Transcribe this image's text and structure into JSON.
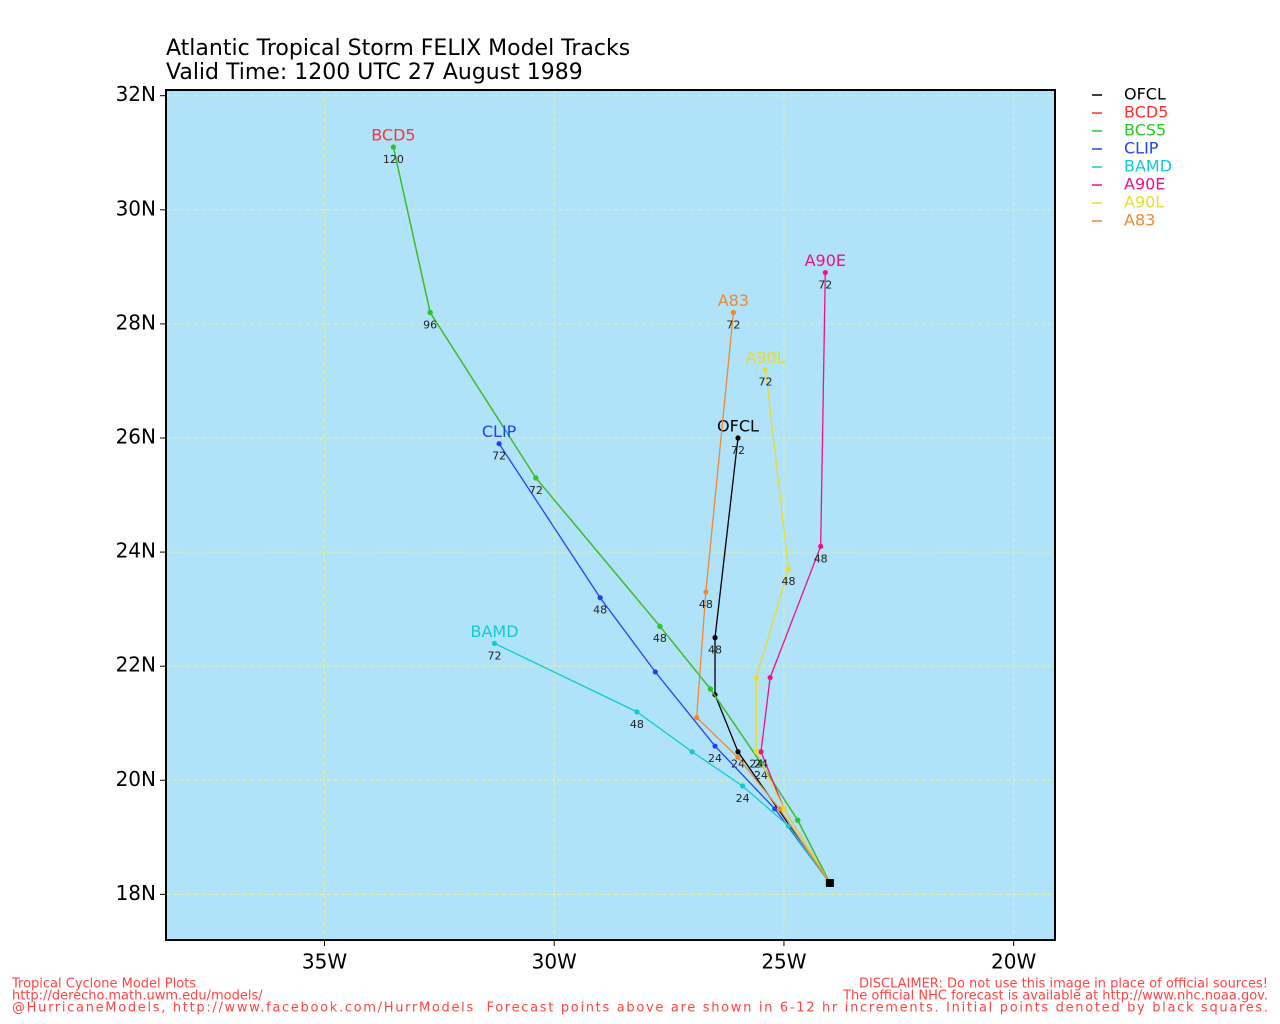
{
  "chart_data": {
    "type": "track-map",
    "title": "Atlantic Tropical Storm FELIX Model Tracks",
    "subtitle": "Valid Time: 1200 UTC 27 August 1989",
    "xlim": [
      -38.45,
      -19.1
    ],
    "ylim": [
      17.2,
      32.1
    ],
    "xticks": [
      {
        "value": -35,
        "label": "35W"
      },
      {
        "value": -30,
        "label": "30W"
      },
      {
        "value": -25,
        "label": "25W"
      },
      {
        "value": -20,
        "label": "20W"
      }
    ],
    "yticks": [
      {
        "value": 18,
        "label": "18N"
      },
      {
        "value": 20,
        "label": "20N"
      },
      {
        "value": 22,
        "label": "22N"
      },
      {
        "value": 24,
        "label": "24N"
      },
      {
        "value": 26,
        "label": "26N"
      },
      {
        "value": 28,
        "label": "28N"
      },
      {
        "value": 30,
        "label": "30N"
      },
      {
        "value": 32,
        "label": "32N"
      }
    ],
    "grid": true,
    "background": "#b0e2fa",
    "grid_color": "#e6f0a0",
    "series": [
      {
        "name": "OFCL",
        "color": "#000000",
        "x": [
          -24.0,
          -26.0,
          -26.5,
          -26.5,
          -26.0
        ],
        "y": [
          18.2,
          20.5,
          21.5,
          22.5,
          26.0
        ],
        "hours": [
          null,
          24,
          null,
          48,
          72
        ],
        "end_label": true
      },
      {
        "name": "BCD5",
        "color": "#ff3333",
        "x": [
          -24.0,
          -24.7,
          -25.5,
          -26.6,
          -27.7,
          -30.4,
          -32.7,
          -33.5
        ],
        "y": [
          18.2,
          19.3,
          20.3,
          21.6,
          22.7,
          25.3,
          28.2,
          31.1
        ],
        "hours": [
          null,
          null,
          null,
          null,
          null,
          null,
          null,
          null
        ],
        "end_label": true
      },
      {
        "name": "BCS5",
        "color": "#22cc22",
        "x": [
          -24.0,
          -24.7,
          -25.5,
          -26.6,
          -27.7,
          -30.4,
          -32.7,
          -33.5
        ],
        "y": [
          18.2,
          19.3,
          20.3,
          21.6,
          22.7,
          25.3,
          28.2,
          31.1
        ],
        "hours": [
          null,
          null,
          24,
          null,
          48,
          72,
          96,
          120
        ],
        "end_label": false
      },
      {
        "name": "CLIP",
        "color": "#2244ee",
        "x": [
          -24.0,
          -25.2,
          -26.5,
          -27.8,
          -29.0,
          -31.2
        ],
        "y": [
          18.2,
          19.5,
          20.6,
          21.9,
          23.2,
          25.9
        ],
        "hours": [
          null,
          null,
          24,
          null,
          48,
          72
        ],
        "end_label": true
      },
      {
        "name": "BAMD",
        "color": "#11cccc",
        "x": [
          -24.0,
          -24.9,
          -25.9,
          -27.0,
          -28.2,
          -31.3
        ],
        "y": [
          18.2,
          19.2,
          19.9,
          20.5,
          21.2,
          22.4
        ],
        "hours": [
          null,
          null,
          24,
          null,
          48,
          72
        ],
        "end_label": true
      },
      {
        "name": "A90E",
        "color": "#ee1188",
        "x": [
          -24.0,
          -25.0,
          -25.5,
          -25.3,
          -24.2,
          -24.1
        ],
        "y": [
          18.2,
          19.5,
          20.5,
          21.8,
          24.1,
          28.9
        ],
        "hours": [
          null,
          null,
          24,
          null,
          48,
          72
        ],
        "end_label": true
      },
      {
        "name": "A90L",
        "color": "#e8dc30",
        "x": [
          -24.0,
          -25.0,
          -25.6,
          -25.6,
          -24.9,
          -25.4
        ],
        "y": [
          18.2,
          19.5,
          20.5,
          21.8,
          23.7,
          27.2
        ],
        "hours": [
          null,
          null,
          24,
          null,
          48,
          72
        ],
        "end_label": true
      },
      {
        "name": "A83",
        "color": "#ee8833",
        "x": [
          -24.0,
          -25.1,
          -26.0,
          -26.9,
          -26.7,
          -26.1
        ],
        "y": [
          18.2,
          19.5,
          20.4,
          21.1,
          23.3,
          28.2
        ],
        "hours": [
          null,
          null,
          null,
          null,
          48,
          72
        ],
        "end_label": true
      }
    ]
  },
  "footer": {
    "left": [
      "Tropical Cyclone Model Plots",
      "http://derecho.math.uwm.edu/models/"
    ],
    "right": [
      "DISCLAIMER: Do not use this image in place of official sources!",
      "The official NHC forecast is available at http://www.nhc.noaa.gov."
    ],
    "bottom": "@HurricaneModels, http://www.facebook.com/HurrModels  Forecast points above are shown in 6-12 hr increments. Initial points denoted by black squares."
  }
}
